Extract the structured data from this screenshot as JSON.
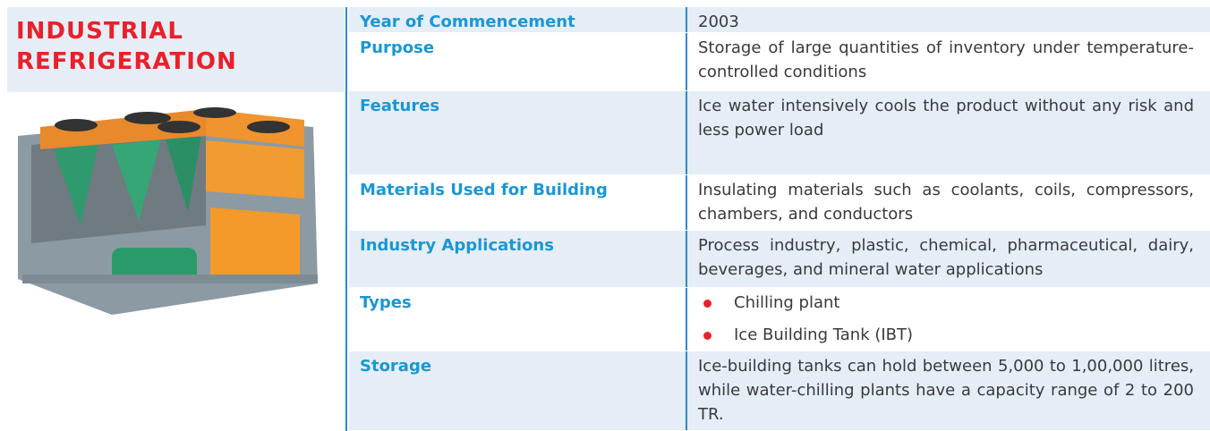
{
  "header": {
    "title": "INDUSTRIAL REFRIGERATION"
  },
  "table": {
    "rows": [
      {
        "label": "Year of Commencement",
        "value": "2003"
      },
      {
        "label": "Purpose",
        "value": "Storage of large quantities of inventory under temperature-controlled conditions"
      },
      {
        "label": "Features",
        "value": "Ice water intensively cools the product without any risk and less power load"
      },
      {
        "label": "Materials Used for Building",
        "value": "Insulating materials such as coolants, coils, compressors, chambers, and conductors"
      },
      {
        "label": "Industry Applications",
        "value": "Process industry, plastic, chemical, pharmaceutical, dairy, beverages, and mineral water applications"
      },
      {
        "label": "Types",
        "items": [
          "Chilling plant",
          "Ice Building Tank (IBT)"
        ]
      },
      {
        "label": "Storage",
        "value": "Ice-building tanks can hold between 5,000 to 1,00,000 litres, while water-chilling plants have a capacity range of 2 to 200 TR."
      }
    ]
  }
}
